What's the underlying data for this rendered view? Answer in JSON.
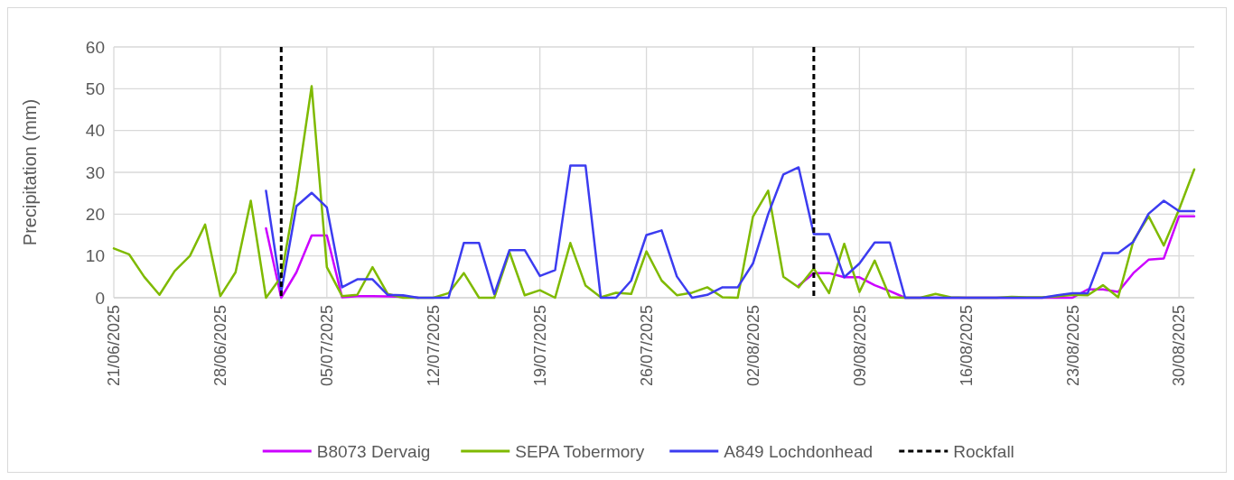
{
  "chart_data": {
    "type": "line",
    "ylabel": "Precipitation (mm)",
    "x": [
      "2025-06-21",
      "2025-06-22",
      "2025-06-23",
      "2025-06-24",
      "2025-06-25",
      "2025-06-26",
      "2025-06-27",
      "2025-06-28",
      "2025-06-29",
      "2025-06-30",
      "2025-07-01",
      "2025-07-02",
      "2025-07-03",
      "2025-07-04",
      "2025-07-05",
      "2025-07-06",
      "2025-07-07",
      "2025-07-08",
      "2025-07-09",
      "2025-07-10",
      "2025-07-11",
      "2025-07-12",
      "2025-07-13",
      "2025-07-14",
      "2025-07-15",
      "2025-07-16",
      "2025-07-17",
      "2025-07-18",
      "2025-07-19",
      "2025-07-20",
      "2025-07-21",
      "2025-07-22",
      "2025-07-23",
      "2025-07-24",
      "2025-07-25",
      "2025-07-26",
      "2025-07-27",
      "2025-07-28",
      "2025-07-29",
      "2025-07-30",
      "2025-07-31",
      "2025-08-01",
      "2025-08-02",
      "2025-08-03",
      "2025-08-04",
      "2025-08-05",
      "2025-08-06",
      "2025-08-07",
      "2025-08-08",
      "2025-08-09",
      "2025-08-10",
      "2025-08-11",
      "2025-08-12",
      "2025-08-13",
      "2025-08-14",
      "2025-08-15",
      "2025-08-16",
      "2025-08-17",
      "2025-08-18",
      "2025-08-19",
      "2025-08-20",
      "2025-08-21",
      "2025-08-22",
      "2025-08-23",
      "2025-08-24",
      "2025-08-25",
      "2025-08-26",
      "2025-08-27",
      "2025-08-28",
      "2025-08-29",
      "2025-08-30",
      "2025-08-31"
    ],
    "series": [
      {
        "name": "B8073 Dervaig",
        "color": "#cc00ff",
        "values": [
          null,
          null,
          null,
          null,
          null,
          null,
          null,
          null,
          null,
          null,
          16.6,
          0,
          6.1,
          14.9,
          14.9,
          0.1,
          0.4,
          0.4,
          0.3,
          0.2,
          0,
          null,
          null,
          null,
          null,
          null,
          null,
          null,
          null,
          null,
          null,
          null,
          null,
          null,
          null,
          null,
          null,
          null,
          null,
          null,
          null,
          null,
          null,
          null,
          null,
          2.9,
          5.9,
          5.9,
          4.9,
          4.9,
          3,
          1.6,
          0,
          0,
          0,
          0,
          0,
          0,
          0,
          0,
          0,
          0,
          0,
          0,
          2,
          2,
          1.4,
          5.9,
          9.1,
          9.4,
          19.5,
          19.5
        ]
      },
      {
        "name": "SEPA Tobermory",
        "color": "#7fba00",
        "values": [
          11.8,
          10.4,
          5,
          0.7,
          6.4,
          10,
          17.5,
          0.4,
          6.1,
          23.2,
          0,
          5,
          25.7,
          50.6,
          7.3,
          0.4,
          0.7,
          7.3,
          0.9,
          0,
          0,
          0,
          1.1,
          5.9,
          0,
          0,
          10.9,
          0.6,
          1.8,
          0,
          13.1,
          2.9,
          0.1,
          1.2,
          0.9,
          11.1,
          4.1,
          0.6,
          1.2,
          2.5,
          0.1,
          0,
          19.4,
          25.6,
          5,
          2.5,
          7,
          1.1,
          12.9,
          1.4,
          8.9,
          0.1,
          0,
          0,
          0.9,
          0.1,
          0,
          0,
          0,
          0.2,
          0.1,
          0.1,
          0.3,
          0.7,
          0.6,
          3,
          0.1,
          13.6,
          19.5,
          12.5,
          21.1,
          30.7
        ]
      },
      {
        "name": "A849 Lochdonhead",
        "color": "#3c3cf0",
        "values": [
          null,
          null,
          null,
          null,
          null,
          null,
          null,
          null,
          null,
          null,
          25.6,
          1.4,
          21.9,
          25.1,
          21.6,
          2.5,
          4.4,
          4.4,
          0.7,
          0.6,
          0,
          0,
          0,
          13.1,
          13.1,
          0.9,
          11.4,
          11.4,
          5.2,
          6.6,
          31.6,
          31.6,
          0,
          0,
          4.1,
          15,
          16.1,
          5.1,
          0,
          0.7,
          2.5,
          2.5,
          8.2,
          20,
          29.5,
          31.2,
          15.2,
          15.2,
          4.9,
          8.2,
          13.2,
          13.2,
          0,
          0,
          0,
          0,
          0,
          0,
          0,
          0,
          0,
          0,
          0.6,
          1.1,
          1.1,
          10.7,
          10.7,
          13.4,
          20.1,
          23.2,
          20.7,
          20.7
        ]
      }
    ],
    "xlim": [
      "2025-06-21",
      "2025-08-31"
    ],
    "xticks": [
      {
        "value": "2025-06-21",
        "label": "21/06/2025"
      },
      {
        "value": "2025-06-28",
        "label": "28/06/2025"
      },
      {
        "value": "2025-07-05",
        "label": "05/07/2025"
      },
      {
        "value": "2025-07-12",
        "label": "12/07/2025"
      },
      {
        "value": "2025-07-19",
        "label": "19/07/2025"
      },
      {
        "value": "2025-07-26",
        "label": "26/07/2025"
      },
      {
        "value": "2025-08-02",
        "label": "02/08/2025"
      },
      {
        "value": "2025-08-09",
        "label": "09/08/2025"
      },
      {
        "value": "2025-08-16",
        "label": "16/08/2025"
      },
      {
        "value": "2025-08-23",
        "label": "23/08/2025"
      },
      {
        "value": "2025-08-30",
        "label": "30/08/2025"
      }
    ],
    "ylim": [
      0,
      60
    ],
    "yticks": [
      0,
      10,
      20,
      30,
      40,
      50,
      60
    ],
    "ref_lines": [
      {
        "axis": "x",
        "value": "2025-07-02",
        "label": "Rockfall",
        "color": "#000000",
        "line_style": "dashed"
      },
      {
        "axis": "x",
        "value": "2025-08-06",
        "color": "#000000",
        "line_style": "dashed"
      }
    ],
    "grid": true,
    "legend": "bottom",
    "line_style": "solid",
    "marker": "none"
  }
}
